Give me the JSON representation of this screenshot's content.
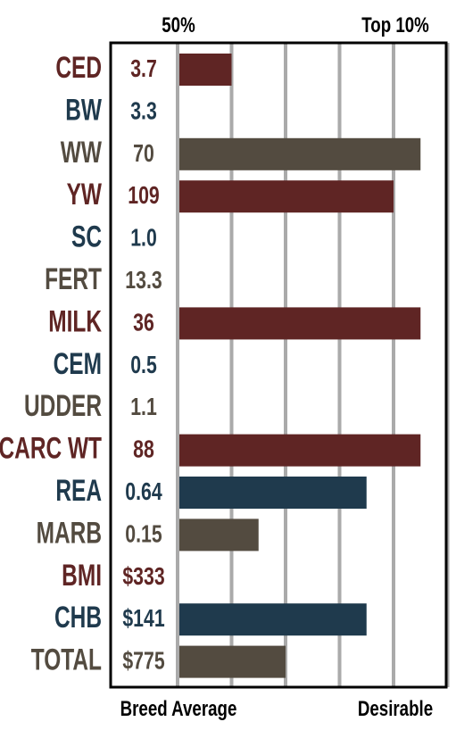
{
  "chart_data": {
    "type": "bar",
    "orientation": "horizontal",
    "top_labels": [
      "50%",
      "Top 10%"
    ],
    "bottom_labels": [
      "Breed Average",
      "Desirable"
    ],
    "grid": true,
    "xlim": [
      0,
      5
    ],
    "rows": [
      {
        "trait": "CED",
        "value_text": "3.7",
        "bar": 1.0,
        "color": "#5f2524"
      },
      {
        "trait": "BW",
        "value_text": "3.3",
        "bar": 0,
        "color": "#1f3a4d"
      },
      {
        "trait": "WW",
        "value_text": "70",
        "bar": 4.5,
        "color": "#534b40"
      },
      {
        "trait": "YW",
        "value_text": "109",
        "bar": 4.0,
        "color": "#5f2524"
      },
      {
        "trait": "SC",
        "value_text": "1.0",
        "bar": 0,
        "color": "#1f3a4d"
      },
      {
        "trait": "FERT",
        "value_text": "13.3",
        "bar": 0,
        "color": "#534b40"
      },
      {
        "trait": "MILK",
        "value_text": "36",
        "bar": 4.5,
        "color": "#5f2524"
      },
      {
        "trait": "CEM",
        "value_text": "0.5",
        "bar": 0,
        "color": "#1f3a4d"
      },
      {
        "trait": "UDDER",
        "value_text": "1.1",
        "bar": 0,
        "color": "#534b40"
      },
      {
        "trait": "CARC WT",
        "value_text": "88",
        "bar": 4.5,
        "color": "#5f2524"
      },
      {
        "trait": "REA",
        "value_text": "0.64",
        "bar": 3.5,
        "color": "#1f3a4d"
      },
      {
        "trait": "MARB",
        "value_text": "0.15",
        "bar": 1.5,
        "color": "#534b40"
      },
      {
        "trait": "BMI",
        "value_text": "$333",
        "bar": 0,
        "color": "#5f2524"
      },
      {
        "trait": "CHB",
        "value_text": "$141",
        "bar": 3.5,
        "color": "#1f3a4d"
      },
      {
        "trait": "TOTAL",
        "value_text": "$775",
        "bar": 2.0,
        "color": "#534b40"
      }
    ]
  }
}
